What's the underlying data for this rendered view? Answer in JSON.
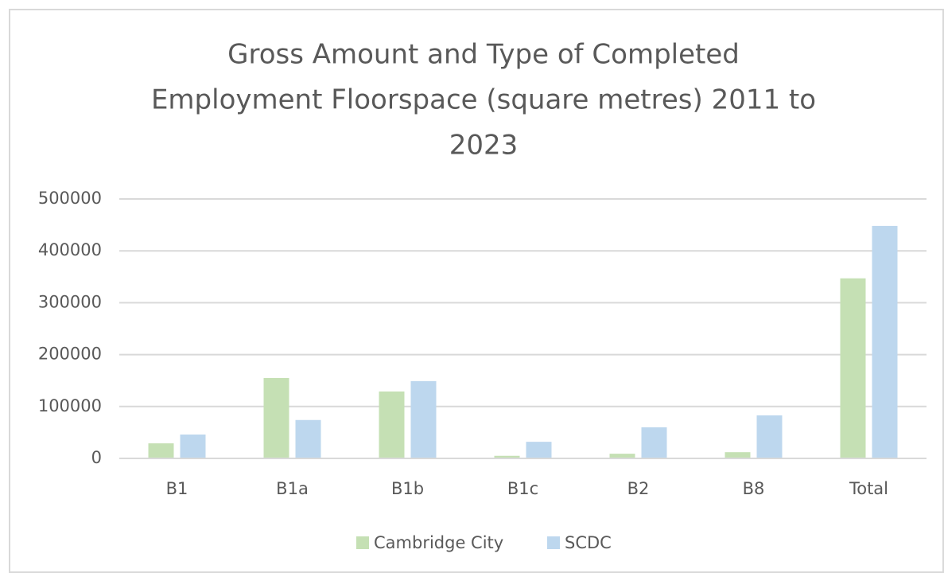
{
  "chart_data": {
    "type": "bar",
    "title": [
      "Gross Amount and Type of Completed",
      "Employment Floorspace (square metres) 2011 to",
      "2023"
    ],
    "categories": [
      "B1",
      "B1a",
      "B1b",
      "B1c",
      "B2",
      "B8",
      "Total"
    ],
    "series": [
      {
        "name": "Cambridge City",
        "color": "#c5e0b4",
        "values": [
          29000,
          155000,
          129000,
          5000,
          9000,
          12000,
          347000
        ]
      },
      {
        "name": "SCDC",
        "color": "#bdd7ee",
        "values": [
          46000,
          74000,
          149000,
          32000,
          60000,
          83000,
          448000
        ]
      }
    ],
    "ylim": [
      0,
      500000
    ],
    "yticks": [
      0,
      100000,
      200000,
      300000,
      400000,
      500000
    ],
    "grid": true,
    "legend": "bottom"
  }
}
